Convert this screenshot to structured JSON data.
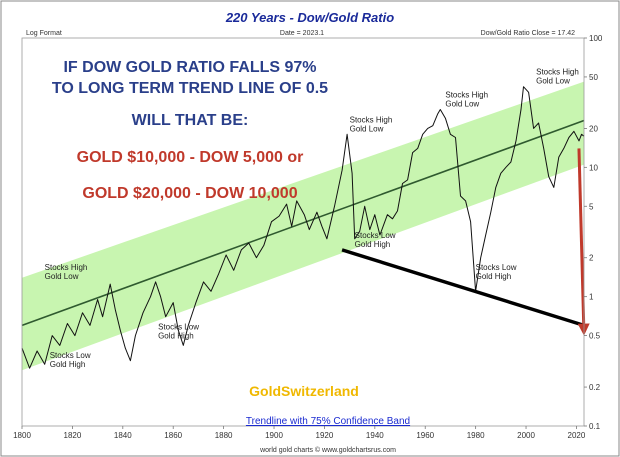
{
  "chart_data": {
    "type": "line",
    "title": "220 Years - Dow/Gold Ratio",
    "top_left_note": "Log Format",
    "date_note": "Date = 2023.1",
    "close_note": "Dow/Gold Ratio Close = 17.42",
    "y_scale": "log",
    "ylim": [
      0.1,
      100
    ],
    "xlim": [
      1800,
      2023
    ],
    "x_ticks": [
      1800,
      1820,
      1840,
      1860,
      1880,
      1900,
      1920,
      1940,
      1960,
      1980,
      2000,
      2020
    ],
    "y_ticks": [
      100,
      50,
      20,
      10,
      5,
      2,
      1,
      0.5,
      0.2,
      0.1
    ],
    "series": [
      {
        "values": [
          [
            1800,
            0.4
          ],
          [
            1803,
            0.28
          ],
          [
            1806,
            0.38
          ],
          [
            1809,
            0.3
          ],
          [
            1812,
            0.5
          ],
          [
            1815,
            0.42
          ],
          [
            1818,
            0.62
          ],
          [
            1821,
            0.5
          ],
          [
            1824,
            0.75
          ],
          [
            1827,
            0.6
          ],
          [
            1830,
            0.95
          ],
          [
            1832,
            0.7
          ],
          [
            1835,
            1.25
          ],
          [
            1837,
            0.8
          ],
          [
            1839,
            0.55
          ],
          [
            1841,
            0.4
          ],
          [
            1843,
            0.32
          ],
          [
            1845,
            0.5
          ],
          [
            1848,
            0.75
          ],
          [
            1851,
            1.0
          ],
          [
            1853,
            1.3
          ],
          [
            1855,
            1.0
          ],
          [
            1857,
            0.7
          ],
          [
            1860,
            0.9
          ],
          [
            1862,
            0.55
          ],
          [
            1864,
            0.42
          ],
          [
            1866,
            0.6
          ],
          [
            1869,
            0.9
          ],
          [
            1872,
            1.3
          ],
          [
            1875,
            1.1
          ],
          [
            1878,
            1.5
          ],
          [
            1881,
            2.1
          ],
          [
            1884,
            1.6
          ],
          [
            1887,
            2.3
          ],
          [
            1890,
            2.6
          ],
          [
            1893,
            2.0
          ],
          [
            1896,
            2.5
          ],
          [
            1899,
            3.8
          ],
          [
            1902,
            4.2
          ],
          [
            1905,
            5.2
          ],
          [
            1907,
            3.5
          ],
          [
            1909,
            5.5
          ],
          [
            1912,
            4.3
          ],
          [
            1914,
            3.3
          ],
          [
            1917,
            4.5
          ],
          [
            1919,
            3.5
          ],
          [
            1921,
            2.8
          ],
          [
            1924,
            5.0
          ],
          [
            1927,
            9.5
          ],
          [
            1929,
            18
          ],
          [
            1931,
            9.0
          ],
          [
            1932,
            2.8
          ],
          [
            1934,
            3.2
          ],
          [
            1936,
            5.0
          ],
          [
            1938,
            3.3
          ],
          [
            1940,
            4.3
          ],
          [
            1942,
            3.0
          ],
          [
            1945,
            4.3
          ],
          [
            1947,
            4.0
          ],
          [
            1949,
            4.6
          ],
          [
            1951,
            7.5
          ],
          [
            1953,
            8.0
          ],
          [
            1955,
            13
          ],
          [
            1957,
            14
          ],
          [
            1959,
            18
          ],
          [
            1961,
            20
          ],
          [
            1963,
            21
          ],
          [
            1965,
            26
          ],
          [
            1966,
            28
          ],
          [
            1968,
            24
          ],
          [
            1970,
            18
          ],
          [
            1972,
            17
          ],
          [
            1974,
            6.0
          ],
          [
            1976,
            5.5
          ],
          [
            1978,
            3.8
          ],
          [
            1980,
            1.1
          ],
          [
            1982,
            2.0
          ],
          [
            1984,
            3.0
          ],
          [
            1986,
            4.5
          ],
          [
            1988,
            7.0
          ],
          [
            1990,
            9.0
          ],
          [
            1992,
            10
          ],
          [
            1994,
            11
          ],
          [
            1996,
            16
          ],
          [
            1998,
            28
          ],
          [
            1999,
            42
          ],
          [
            2001,
            38
          ],
          [
            2003,
            20
          ],
          [
            2005,
            22
          ],
          [
            2007,
            14
          ],
          [
            2009,
            8.5
          ],
          [
            2011,
            7.0
          ],
          [
            2013,
            12
          ],
          [
            2015,
            14
          ],
          [
            2017,
            17
          ],
          [
            2019,
            19
          ],
          [
            2021,
            16
          ],
          [
            2022,
            18
          ],
          [
            2023,
            17.42
          ]
        ]
      }
    ],
    "trend_line": [
      [
        1800,
        0.6
      ],
      [
        2023,
        23
      ]
    ],
    "confidence_band": {
      "upper": [
        [
          1800,
          1.4
        ],
        [
          2023,
          46
        ]
      ],
      "lower": [
        [
          1800,
          0.27
        ],
        [
          2023,
          10.5
        ]
      ]
    },
    "support_line": [
      [
        1927,
        2.3
      ],
      [
        2023,
        0.6
      ]
    ],
    "projection_arrow": [
      [
        2021,
        14
      ],
      [
        2023,
        0.5
      ]
    ],
    "annotations": [
      {
        "x": 1930,
        "y": 18,
        "text": [
          "Stocks High",
          "Gold Low"
        ]
      },
      {
        "x": 1968,
        "y": 28,
        "text": [
          "Stocks High",
          "Gold Low"
        ]
      },
      {
        "x": 2004,
        "y": 42,
        "text": [
          "Stocks High",
          "Gold Low"
        ]
      },
      {
        "x": 1809,
        "y": 1.3,
        "text": [
          "Stocks High",
          "Gold Low"
        ]
      },
      {
        "x": 1811,
        "y": 0.27,
        "text": [
          "Stocks Low",
          "Gold High"
        ]
      },
      {
        "x": 1854,
        "y": 0.45,
        "text": [
          "Stocks Low",
          "Gold High"
        ]
      },
      {
        "x": 1932,
        "y": 2.3,
        "text": [
          "Stocks Low",
          "Gold High"
        ]
      },
      {
        "x": 1980,
        "y": 1.3,
        "text": [
          "Stocks Low",
          "Gold High"
        ]
      }
    ],
    "headline": [
      "IF DOW GOLD RATIO FALLS 97%",
      "TO LONG TERM TREND LINE  OF 0.5",
      "WILL THAT BE:",
      "GOLD $10,000 - DOW 5,000 or",
      "GOLD $20,000 - DOW 10,000"
    ],
    "brand": "GoldSwitzerland",
    "band_label": "Trendline with 75% Confidence Band",
    "credit": "world gold charts © www.goldchartsrus.com",
    "colors": {
      "series": "#111111",
      "trend": "#2f5a2f",
      "band": "#c8f5b0",
      "support": "#000000",
      "arrow": "#c0392b",
      "title": "#1a2a9a",
      "headline_blue": "#2a3f8a",
      "headline_red": "#c0392b",
      "brand": "#f0b800"
    }
  }
}
